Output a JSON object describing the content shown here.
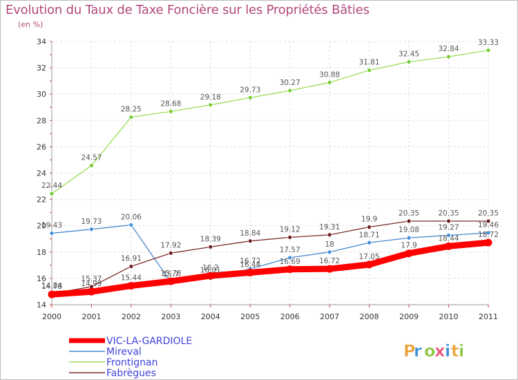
{
  "chart_data": {
    "type": "line",
    "title": "Evolution du Taux de Taxe Foncière sur les Propriétés Bâties",
    "unit_label": "(en %)",
    "x": [
      "2000",
      "2001",
      "2002",
      "2003",
      "2004",
      "2005",
      "2006",
      "2007",
      "2008",
      "2009",
      "2010",
      "2011"
    ],
    "ylim": [
      14,
      34
    ],
    "yticks": [
      "14",
      "16",
      "18",
      "20",
      "22",
      "24",
      "26",
      "28",
      "30",
      "32",
      "34"
    ],
    "grid": true,
    "legend_position": "bottom-left",
    "series": [
      {
        "name": "VIC-LA-GARDIOLE",
        "color": "#ff0000",
        "point_color": "#ff0000",
        "values": [
          14.78,
          14.99,
          15.44,
          15.78,
          16.2,
          16.44,
          16.69,
          16.72,
          17.05,
          17.9,
          18.44,
          18.72
        ],
        "labels": [
          "14.78",
          "14.99",
          "15.44",
          "15.78",
          "16.2",
          "16.44",
          "16.69",
          "16.72",
          "17.05",
          "17.9",
          "18.44",
          "18.72"
        ]
      },
      {
        "name": "Mireval",
        "color": "#4488cc",
        "point_color": "#3f8fdc",
        "values": [
          19.43,
          19.73,
          20.06,
          15.7,
          16.01,
          16.72,
          17.57,
          18,
          18.71,
          19.08,
          19.27,
          19.46
        ],
        "labels": [
          "19.43",
          "19.73",
          "20.06",
          "15.7",
          "16.01",
          "16.72",
          "17.57",
          "18",
          "18.71",
          "19.08",
          "19.27",
          "19.46"
        ]
      },
      {
        "name": "Frontignan",
        "color": "#99dd55",
        "point_color": "#77cc33",
        "values": [
          22.44,
          24.57,
          28.25,
          28.68,
          29.18,
          29.73,
          30.27,
          30.88,
          31.81,
          32.45,
          32.84,
          33.33
        ],
        "labels": [
          "22.44",
          "24.57",
          "28.25",
          "28.68",
          "29.18",
          "29.73",
          "30.27",
          "30.88",
          "31.81",
          "32.45",
          "32.84",
          "33.33"
        ]
      },
      {
        "name": "Fabrègues",
        "color": "#7b2a2a",
        "point_color": "#6a1e1e",
        "values": [
          14.84,
          15.37,
          16.91,
          17.92,
          18.39,
          18.84,
          19.12,
          19.31,
          19.9,
          20.35,
          20.35,
          20.35
        ],
        "labels": [
          "14.84",
          "15.37",
          "16.91",
          "17.92",
          "18.39",
          "18.84",
          "19.12",
          "19.31",
          "19.9",
          "20.35",
          "20.35",
          "20.35"
        ]
      }
    ]
  },
  "brand": {
    "letters": [
      {
        "char": "P",
        "color": "#e8a33d"
      },
      {
        "char": "r",
        "color": "#3a8fd6"
      },
      {
        "char": "o",
        "color": "#8cc63f"
      },
      {
        "char": "x",
        "color": "#e94e77"
      },
      {
        "char": "i",
        "color": "#3a8fd6"
      },
      {
        "char": "t",
        "color": "#e8a33d"
      },
      {
        "char": "i",
        "color": "#8cc63f"
      }
    ]
  }
}
